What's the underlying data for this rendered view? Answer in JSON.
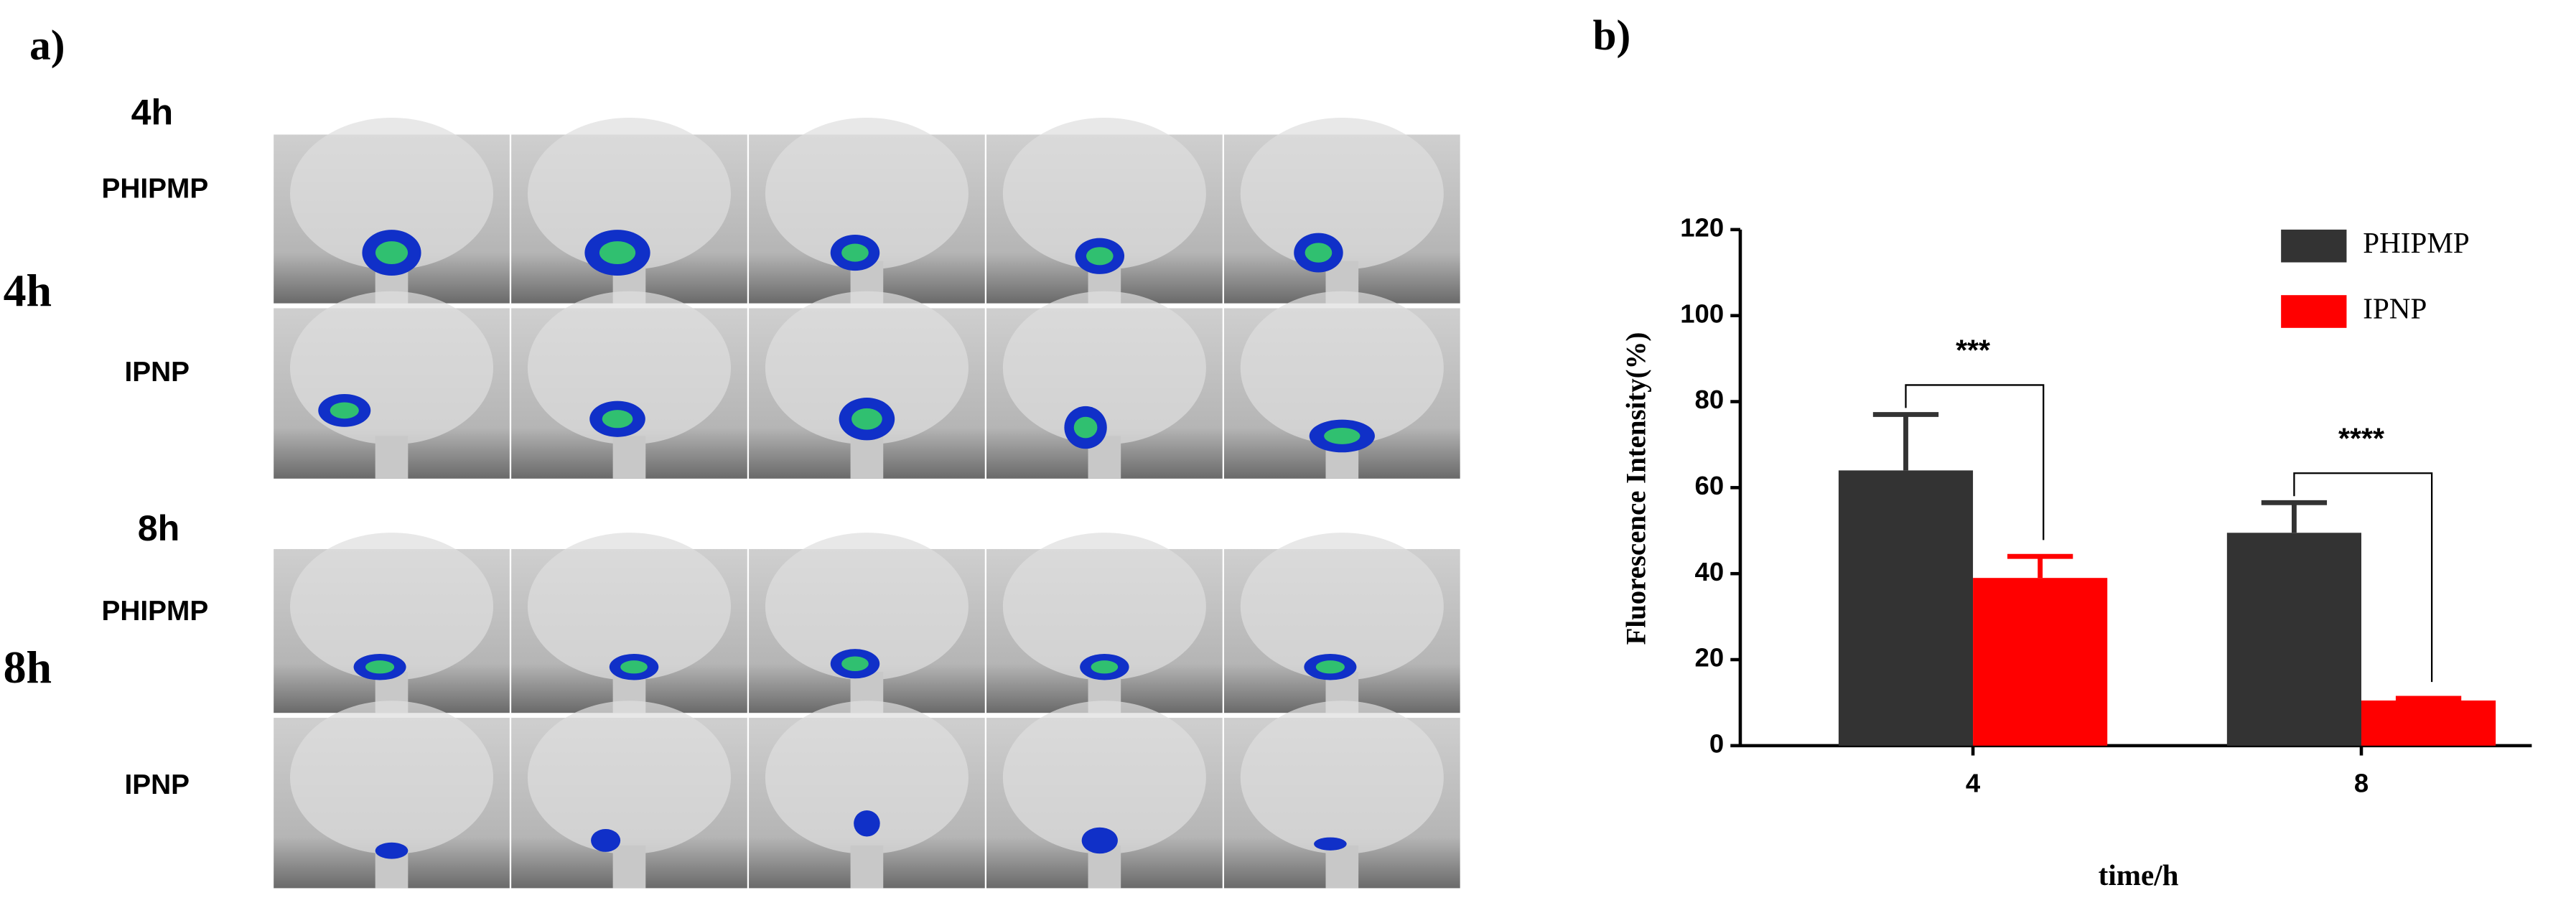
{
  "panel_a": {
    "label": "a)",
    "top_time_4": "4h",
    "row_label_1": "PHIPMP",
    "side_time_4": "4h",
    "row_label_2": "IPNP",
    "top_time_8": "8h",
    "row_label_3": "PHIPMP",
    "side_time_8": "8h",
    "row_label_4": "IPNP"
  },
  "chart_data": {
    "type": "bar",
    "panel_label": "b)",
    "y_label": "Fluorescence Intensity(%)",
    "x_label": "time/h",
    "categories": [
      "4",
      "8"
    ],
    "series": [
      {
        "name": "PHIPMP",
        "color": "#333333",
        "values": [
          64,
          49.5
        ],
        "errors": [
          13,
          7
        ]
      },
      {
        "name": "IPNP",
        "color": "#ff0000",
        "values": [
          39,
          10.5
        ],
        "errors": [
          5,
          0.5
        ]
      }
    ],
    "annotations": [
      "***",
      "****"
    ],
    "ylim": [
      0,
      120
    ],
    "yticks": [
      0,
      20,
      40,
      60,
      80,
      100,
      120
    ]
  }
}
